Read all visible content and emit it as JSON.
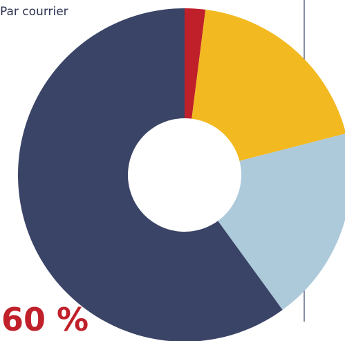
{
  "chart_data": {
    "type": "donut",
    "title": "Par courrier",
    "categories": [
      null,
      null,
      null,
      null
    ],
    "values": [
      2,
      19,
      19,
      60
    ],
    "value_labels": [
      null,
      null,
      null,
      "60 %"
    ],
    "colors": [
      "#c0202a",
      "#f2b921",
      "#adcadb",
      "#3a4466"
    ]
  }
}
